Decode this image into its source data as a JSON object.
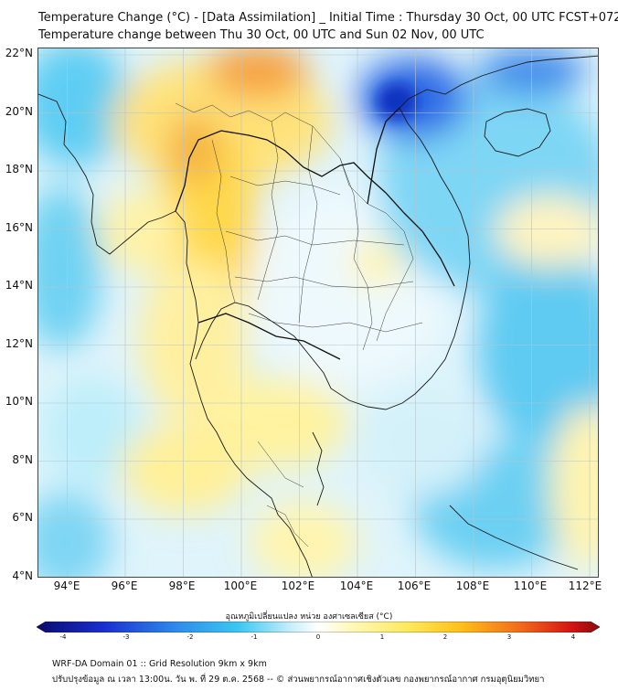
{
  "header": {
    "title_line1": "Temperature Change (°C) - [Data Assimilation] _ Initial Time : Thursday 30 Oct, 00 UTC FCST+072",
    "title_line2": "Temperature change between Thu 30 Oct, 00 UTC and Sun 02 Nov, 00 UTC"
  },
  "map": {
    "lat_labels": [
      "22°N",
      "20°N",
      "18°N",
      "16°N",
      "14°N",
      "12°N",
      "10°N",
      "8°N",
      "6°N",
      "4°N"
    ],
    "lon_labels": [
      "94°E",
      "96°E",
      "98°E",
      "100°E",
      "102°E",
      "104°E",
      "106°E",
      "108°E",
      "110°E",
      "112°E"
    ],
    "lat_range": [
      4,
      22.2
    ],
    "lon_range": [
      93,
      112.3
    ]
  },
  "colorbar": {
    "title": "อุณหภูมิเปลี่ยนแปลง หน่วย องศาเซลเซียส (°C)",
    "ticks": [
      "-4",
      "-3",
      "-2",
      "-1",
      "0",
      "1",
      "2",
      "3",
      "4"
    ],
    "range": [
      -4,
      4
    ],
    "colors": {
      "cold_extreme": "#0a0a8a",
      "cold_strong": "#1f3fe0",
      "cold": "#33b5f0",
      "cool": "#9fe2f7",
      "neutral": "#ffffff",
      "warm": "#fff59a",
      "warm_strong": "#ffd21f",
      "hot": "#f5821e",
      "hot_extreme": "#b01010"
    }
  },
  "footer": {
    "line1": "WRF-DA Domain 01 :: Grid Resolution 9km x 9km",
    "line2": "ปรับปรุงข้อมูล ณ เวลา 13:00น. วัน พ. ที่ 29 ต.ค. 2568 -- © ส่วนพยากรณ์อากาศเชิงตัวเลข กองพยากรณ์อากาศ กรมอุตุนิยมวิทยา"
  }
}
